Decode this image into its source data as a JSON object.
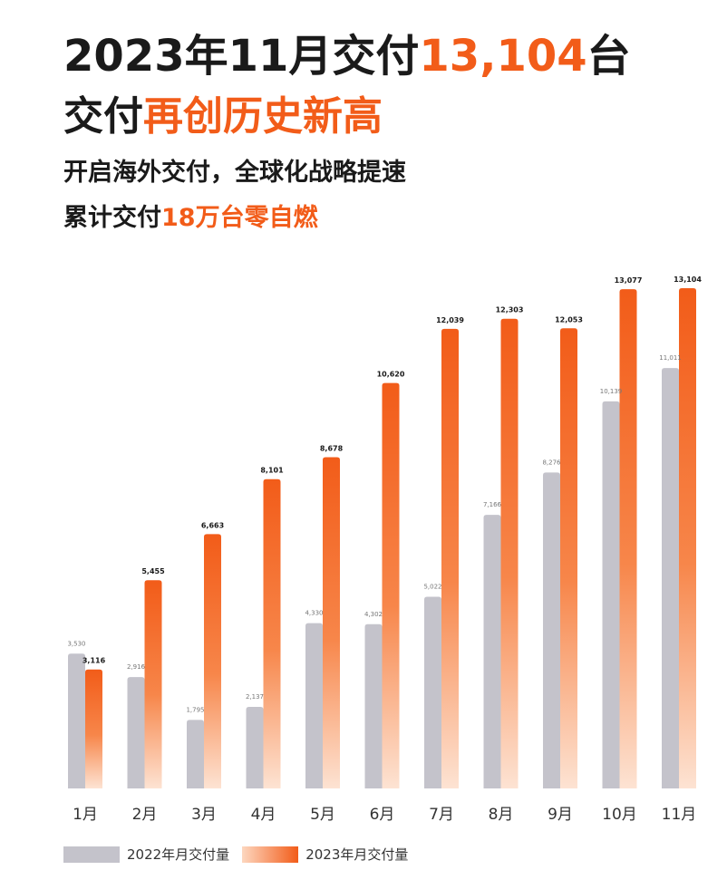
{
  "headline": {
    "line1_a": "2023年11月交付",
    "line1_b": "13,104",
    "line1_c": "台",
    "line2_a": "交付",
    "line2_b": "再创历史新高",
    "line3": "开启海外交付，全球化战略提速",
    "line4_a": "累计交付",
    "line4_b": "18万台零自燃"
  },
  "colors": {
    "series_2022": "#c4c3cb",
    "series_2023_top": "#f25c19",
    "series_2023_bottom": "#fde3d3",
    "accent": "#f25c19"
  },
  "chart_data": {
    "type": "bar",
    "categories": [
      "1月",
      "2月",
      "3月",
      "4月",
      "5月",
      "6月",
      "7月",
      "8月",
      "9月",
      "10月",
      "11月"
    ],
    "series": [
      {
        "name": "2022年月交付量",
        "values": [
          3530,
          2916,
          1795,
          2137,
          4330,
          4302,
          5022,
          7166,
          8276,
          10139,
          11011
        ],
        "labels": [
          "3,530",
          "2,916",
          "1,795",
          "2,137",
          "4,330",
          "4,302",
          "5,022",
          "7,166",
          "8,276",
          "10,139",
          "11,011"
        ]
      },
      {
        "name": "2023年月交付量",
        "values": [
          3116,
          5455,
          6663,
          8101,
          8678,
          10620,
          12039,
          12303,
          12053,
          13077,
          13104
        ],
        "labels": [
          "3,116",
          "5,455",
          "6,663",
          "8,101",
          "8,678",
          "10,620",
          "12,039",
          "12,303",
          "12,053",
          "13,077",
          "13,104"
        ]
      }
    ],
    "title": "",
    "xlabel": "",
    "ylabel": "",
    "ylim": [
      0,
      13104
    ],
    "grid": false,
    "legend": "bottom-left"
  }
}
